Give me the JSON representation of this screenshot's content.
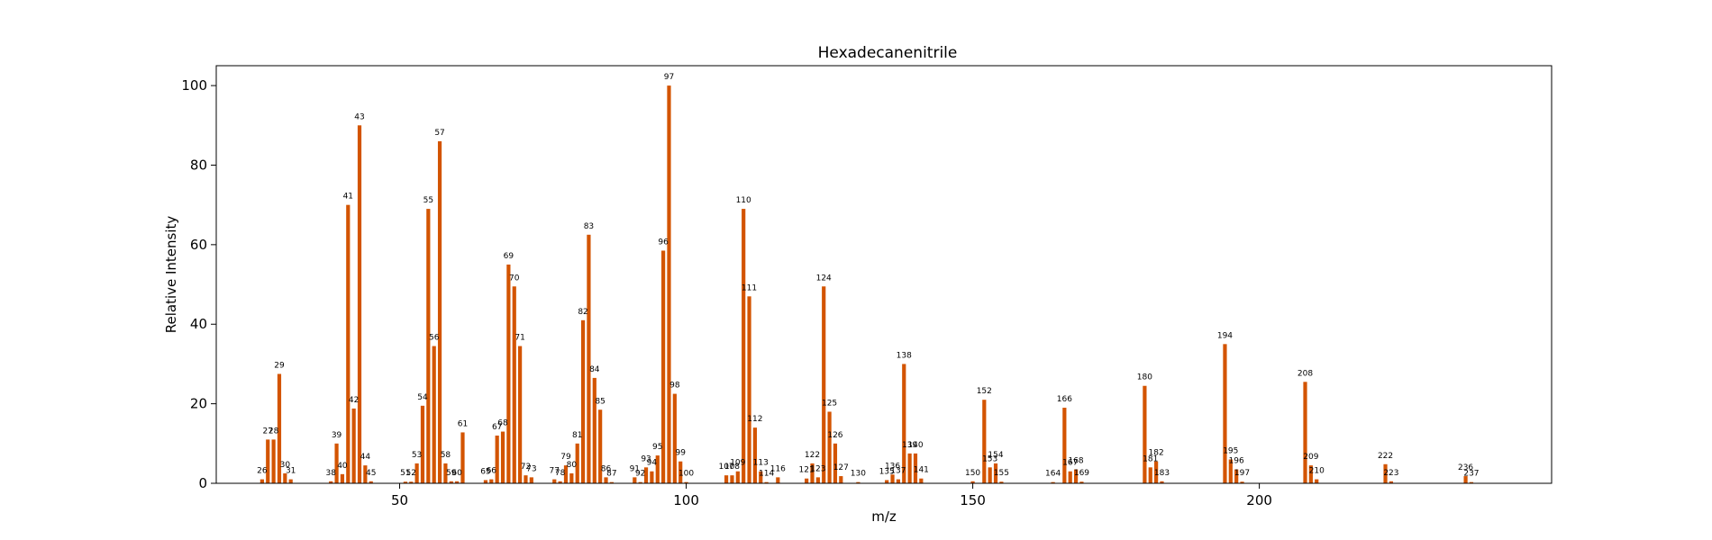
{
  "chart_data": {
    "type": "bar",
    "title": "Hexadecanenitrile",
    "xlabel": "m/z",
    "ylabel": "Relative Intensity",
    "xlim": [
      18,
      251
    ],
    "ylim": [
      0,
      105
    ],
    "xticks": [
      50,
      100,
      150,
      200
    ],
    "yticks": [
      0,
      20,
      40,
      60,
      80,
      100
    ],
    "grid": false,
    "bar_color": "#d35400",
    "peaks": [
      {
        "mz": 26,
        "intensity": 1.0,
        "label": "26"
      },
      {
        "mz": 27,
        "intensity": 11.0,
        "label": "27"
      },
      {
        "mz": 28,
        "intensity": 11.0,
        "label": "28"
      },
      {
        "mz": 29,
        "intensity": 27.5,
        "label": "29"
      },
      {
        "mz": 30,
        "intensity": 2.5,
        "label": "30"
      },
      {
        "mz": 31,
        "intensity": 1.0,
        "label": "31"
      },
      {
        "mz": 38,
        "intensity": 0.5,
        "label": "38"
      },
      {
        "mz": 39,
        "intensity": 10.0,
        "label": "39"
      },
      {
        "mz": 40,
        "intensity": 2.3,
        "label": "40"
      },
      {
        "mz": 41,
        "intensity": 70.0,
        "label": "41"
      },
      {
        "mz": 42,
        "intensity": 18.8,
        "label": "42"
      },
      {
        "mz": 43,
        "intensity": 90.0,
        "label": "43"
      },
      {
        "mz": 44,
        "intensity": 4.5,
        "label": "44"
      },
      {
        "mz": 45,
        "intensity": 0.5,
        "label": "45"
      },
      {
        "mz": 51,
        "intensity": 0.4,
        "label": "51"
      },
      {
        "mz": 52,
        "intensity": 0.4,
        "label": "52"
      },
      {
        "mz": 53,
        "intensity": 5.0,
        "label": "53"
      },
      {
        "mz": 54,
        "intensity": 19.5,
        "label": "54"
      },
      {
        "mz": 55,
        "intensity": 69.0,
        "label": "55"
      },
      {
        "mz": 56,
        "intensity": 34.5,
        "label": "56"
      },
      {
        "mz": 57,
        "intensity": 86.0,
        "label": "57"
      },
      {
        "mz": 58,
        "intensity": 5.0,
        "label": "58"
      },
      {
        "mz": 59,
        "intensity": 0.5,
        "label": "59"
      },
      {
        "mz": 60,
        "intensity": 0.5,
        "label": "60"
      },
      {
        "mz": 61,
        "intensity": 12.8,
        "label": "61"
      },
      {
        "mz": 65,
        "intensity": 0.8,
        "label": "65"
      },
      {
        "mz": 66,
        "intensity": 1.0,
        "label": "66"
      },
      {
        "mz": 67,
        "intensity": 12.0,
        "label": "67"
      },
      {
        "mz": 68,
        "intensity": 13.0,
        "label": "68"
      },
      {
        "mz": 69,
        "intensity": 55.0,
        "label": "69"
      },
      {
        "mz": 70,
        "intensity": 49.5,
        "label": "70"
      },
      {
        "mz": 71,
        "intensity": 34.5,
        "label": "71"
      },
      {
        "mz": 72,
        "intensity": 2.0,
        "label": "72"
      },
      {
        "mz": 73,
        "intensity": 1.5,
        "label": "73"
      },
      {
        "mz": 77,
        "intensity": 1.0,
        "label": "77"
      },
      {
        "mz": 78,
        "intensity": 0.5,
        "label": "78"
      },
      {
        "mz": 79,
        "intensity": 4.5,
        "label": "79"
      },
      {
        "mz": 80,
        "intensity": 2.5,
        "label": "80"
      },
      {
        "mz": 81,
        "intensity": 10.0,
        "label": "81"
      },
      {
        "mz": 82,
        "intensity": 41.0,
        "label": "82"
      },
      {
        "mz": 83,
        "intensity": 62.5,
        "label": "83"
      },
      {
        "mz": 84,
        "intensity": 26.5,
        "label": "84"
      },
      {
        "mz": 85,
        "intensity": 18.5,
        "label": "85"
      },
      {
        "mz": 86,
        "intensity": 1.5,
        "label": "86"
      },
      {
        "mz": 87,
        "intensity": 0.3,
        "label": "87"
      },
      {
        "mz": 91,
        "intensity": 1.5,
        "label": "91"
      },
      {
        "mz": 92,
        "intensity": 0.3,
        "label": "92"
      },
      {
        "mz": 93,
        "intensity": 4.0,
        "label": "93"
      },
      {
        "mz": 94,
        "intensity": 3.0,
        "label": "94"
      },
      {
        "mz": 95,
        "intensity": 7.0,
        "label": "95"
      },
      {
        "mz": 96,
        "intensity": 58.5,
        "label": "96"
      },
      {
        "mz": 97,
        "intensity": 100.0,
        "label": "97"
      },
      {
        "mz": 98,
        "intensity": 22.5,
        "label": "98"
      },
      {
        "mz": 99,
        "intensity": 5.5,
        "label": "99"
      },
      {
        "mz": 100,
        "intensity": 0.3,
        "label": "100"
      },
      {
        "mz": 107,
        "intensity": 2.0,
        "label": "107"
      },
      {
        "mz": 108,
        "intensity": 2.0,
        "label": "108"
      },
      {
        "mz": 109,
        "intensity": 3.0,
        "label": "109"
      },
      {
        "mz": 110,
        "intensity": 69.0,
        "label": "110"
      },
      {
        "mz": 111,
        "intensity": 47.0,
        "label": "111"
      },
      {
        "mz": 112,
        "intensity": 14.0,
        "label": "112"
      },
      {
        "mz": 113,
        "intensity": 3.0,
        "label": "113"
      },
      {
        "mz": 114,
        "intensity": 0.3,
        "label": "114"
      },
      {
        "mz": 116,
        "intensity": 1.5,
        "label": "116"
      },
      {
        "mz": 121,
        "intensity": 1.2,
        "label": "121"
      },
      {
        "mz": 122,
        "intensity": 5.0,
        "label": "122"
      },
      {
        "mz": 123,
        "intensity": 1.5,
        "label": "123"
      },
      {
        "mz": 124,
        "intensity": 49.5,
        "label": "124"
      },
      {
        "mz": 125,
        "intensity": 18.0,
        "label": "125"
      },
      {
        "mz": 126,
        "intensity": 10.0,
        "label": "126"
      },
      {
        "mz": 127,
        "intensity": 1.8,
        "label": "127"
      },
      {
        "mz": 130,
        "intensity": 0.3,
        "label": "130"
      },
      {
        "mz": 135,
        "intensity": 0.8,
        "label": "135"
      },
      {
        "mz": 136,
        "intensity": 2.2,
        "label": "136"
      },
      {
        "mz": 137,
        "intensity": 1.0,
        "label": "137"
      },
      {
        "mz": 138,
        "intensity": 30.0,
        "label": "138"
      },
      {
        "mz": 139,
        "intensity": 7.5,
        "label": "139"
      },
      {
        "mz": 140,
        "intensity": 7.5,
        "label": "140"
      },
      {
        "mz": 141,
        "intensity": 1.2,
        "label": "141"
      },
      {
        "mz": 150,
        "intensity": 0.5,
        "label": "150"
      },
      {
        "mz": 152,
        "intensity": 21.0,
        "label": "152"
      },
      {
        "mz": 153,
        "intensity": 4.0,
        "label": "153"
      },
      {
        "mz": 154,
        "intensity": 5.0,
        "label": "154"
      },
      {
        "mz": 155,
        "intensity": 0.4,
        "label": "155"
      },
      {
        "mz": 164,
        "intensity": 0.3,
        "label": "164"
      },
      {
        "mz": 166,
        "intensity": 19.0,
        "label": "166"
      },
      {
        "mz": 167,
        "intensity": 3.0,
        "label": "167"
      },
      {
        "mz": 168,
        "intensity": 3.5,
        "label": "168"
      },
      {
        "mz": 169,
        "intensity": 0.4,
        "label": "169"
      },
      {
        "mz": 180,
        "intensity": 24.5,
        "label": "180"
      },
      {
        "mz": 181,
        "intensity": 4.0,
        "label": "181"
      },
      {
        "mz": 182,
        "intensity": 5.5,
        "label": "182"
      },
      {
        "mz": 183,
        "intensity": 0.5,
        "label": "183"
      },
      {
        "mz": 194,
        "intensity": 35.0,
        "label": "194"
      },
      {
        "mz": 195,
        "intensity": 6.0,
        "label": "195"
      },
      {
        "mz": 196,
        "intensity": 3.5,
        "label": "196"
      },
      {
        "mz": 197,
        "intensity": 0.4,
        "label": "197"
      },
      {
        "mz": 208,
        "intensity": 25.5,
        "label": "208"
      },
      {
        "mz": 209,
        "intensity": 4.5,
        "label": "209"
      },
      {
        "mz": 210,
        "intensity": 1.0,
        "label": "210"
      },
      {
        "mz": 222,
        "intensity": 4.8,
        "label": "222"
      },
      {
        "mz": 223,
        "intensity": 0.5,
        "label": "223"
      },
      {
        "mz": 236,
        "intensity": 1.8,
        "label": "236"
      },
      {
        "mz": 237,
        "intensity": 0.3,
        "label": "237"
      }
    ]
  }
}
